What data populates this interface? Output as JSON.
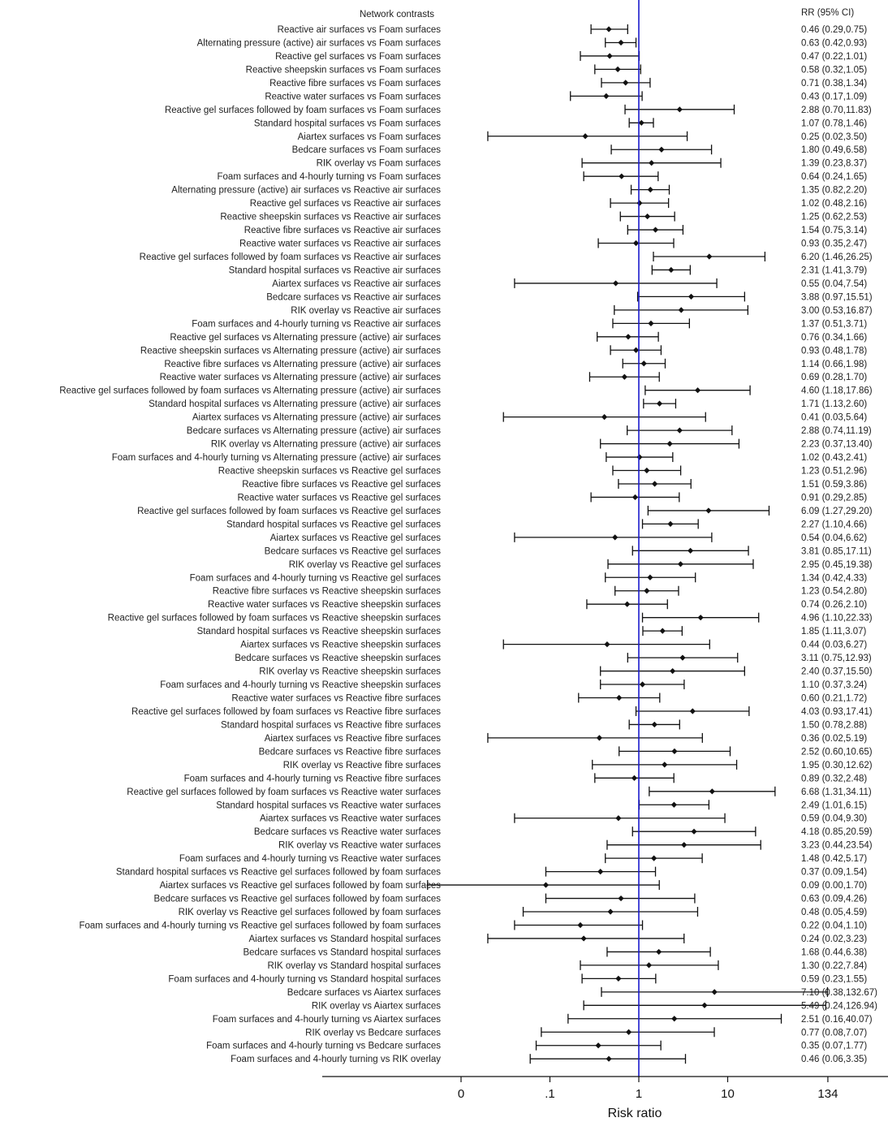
{
  "chart_data": {
    "type": "forest",
    "header_left": "Network contrasts",
    "header_right": "RR (95% CI)",
    "xlabel": "Risk ratio",
    "scale": "log",
    "reference_line": 1,
    "reference_color": "#1a1acc",
    "xticks": [
      {
        "label": "0",
        "value": 0.01
      },
      {
        "label": ".1",
        "value": 0.1
      },
      {
        "label": "1",
        "value": 1
      },
      {
        "label": "10",
        "value": 10
      },
      {
        "label": "134",
        "value": 134
      }
    ],
    "rows": [
      {
        "label": "Reactive air surfaces vs Foam surfaces",
        "rr": 0.46,
        "lo": 0.29,
        "hi": 0.75,
        "text": "0.46 (0.29,0.75)"
      },
      {
        "label": "Alternating pressure (active) air surfaces vs Foam surfaces",
        "rr": 0.63,
        "lo": 0.42,
        "hi": 0.93,
        "text": "0.63 (0.42,0.93)"
      },
      {
        "label": "Reactive gel surfaces vs Foam surfaces",
        "rr": 0.47,
        "lo": 0.22,
        "hi": 1.01,
        "text": "0.47 (0.22,1.01)"
      },
      {
        "label": "Reactive sheepskin surfaces vs Foam surfaces",
        "rr": 0.58,
        "lo": 0.32,
        "hi": 1.05,
        "text": "0.58 (0.32,1.05)"
      },
      {
        "label": "Reactive fibre surfaces vs Foam surfaces",
        "rr": 0.71,
        "lo": 0.38,
        "hi": 1.34,
        "text": "0.71 (0.38,1.34)"
      },
      {
        "label": "Reactive water surfaces vs Foam surfaces",
        "rr": 0.43,
        "lo": 0.17,
        "hi": 1.09,
        "text": "0.43 (0.17,1.09)"
      },
      {
        "label": "Reactive gel surfaces followed by foam surfaces vs Foam surfaces",
        "rr": 2.88,
        "lo": 0.7,
        "hi": 11.83,
        "text": "2.88 (0.70,11.83)"
      },
      {
        "label": "Standard hospital surfaces vs Foam surfaces",
        "rr": 1.07,
        "lo": 0.78,
        "hi": 1.46,
        "text": "1.07 (0.78,1.46)"
      },
      {
        "label": "Aiartex surfaces vs Foam surfaces",
        "rr": 0.25,
        "lo": 0.02,
        "hi": 3.5,
        "text": "0.25 (0.02,3.50)"
      },
      {
        "label": "Bedcare surfaces vs Foam surfaces",
        "rr": 1.8,
        "lo": 0.49,
        "hi": 6.58,
        "text": "1.80 (0.49,6.58)"
      },
      {
        "label": "RIK overlay vs Foam surfaces",
        "rr": 1.39,
        "lo": 0.23,
        "hi": 8.37,
        "text": "1.39 (0.23,8.37)"
      },
      {
        "label": "Foam surfaces and 4-hourly turning vs Foam surfaces",
        "rr": 0.64,
        "lo": 0.24,
        "hi": 1.65,
        "text": "0.64 (0.24,1.65)"
      },
      {
        "label": "Alternating pressure (active) air surfaces vs Reactive air surfaces",
        "rr": 1.35,
        "lo": 0.82,
        "hi": 2.2,
        "text": "1.35 (0.82,2.20)"
      },
      {
        "label": "Reactive gel surfaces vs Reactive air surfaces",
        "rr": 1.02,
        "lo": 0.48,
        "hi": 2.16,
        "text": "1.02 (0.48,2.16)"
      },
      {
        "label": "Reactive sheepskin surfaces vs Reactive air surfaces",
        "rr": 1.25,
        "lo": 0.62,
        "hi": 2.53,
        "text": "1.25 (0.62,2.53)"
      },
      {
        "label": "Reactive fibre surfaces vs Reactive air surfaces",
        "rr": 1.54,
        "lo": 0.75,
        "hi": 3.14,
        "text": "1.54 (0.75,3.14)"
      },
      {
        "label": "Reactive water surfaces vs Reactive air surfaces",
        "rr": 0.93,
        "lo": 0.35,
        "hi": 2.47,
        "text": "0.93 (0.35,2.47)"
      },
      {
        "label": "Reactive gel surfaces followed by foam surfaces vs Reactive air surfaces",
        "rr": 6.2,
        "lo": 1.46,
        "hi": 26.25,
        "text": "6.20 (1.46,26.25)"
      },
      {
        "label": "Standard hospital surfaces vs Reactive air surfaces",
        "rr": 2.31,
        "lo": 1.41,
        "hi": 3.79,
        "text": "2.31 (1.41,3.79)"
      },
      {
        "label": "Aiartex surfaces vs Reactive air surfaces",
        "rr": 0.55,
        "lo": 0.04,
        "hi": 7.54,
        "text": "0.55 (0.04,7.54)"
      },
      {
        "label": "Bedcare surfaces vs Reactive air surfaces",
        "rr": 3.88,
        "lo": 0.97,
        "hi": 15.51,
        "text": "3.88 (0.97,15.51)"
      },
      {
        "label": "RIK overlay vs Reactive air surfaces",
        "rr": 3.0,
        "lo": 0.53,
        "hi": 16.87,
        "text": "3.00 (0.53,16.87)"
      },
      {
        "label": "Foam surfaces and 4-hourly turning vs Reactive air surfaces",
        "rr": 1.37,
        "lo": 0.51,
        "hi": 3.71,
        "text": "1.37 (0.51,3.71)"
      },
      {
        "label": "Reactive gel surfaces vs Alternating pressure (active) air surfaces",
        "rr": 0.76,
        "lo": 0.34,
        "hi": 1.66,
        "text": "0.76 (0.34,1.66)"
      },
      {
        "label": "Reactive sheepskin surfaces vs Alternating pressure (active) air surfaces",
        "rr": 0.93,
        "lo": 0.48,
        "hi": 1.78,
        "text": "0.93 (0.48,1.78)"
      },
      {
        "label": "Reactive fibre surfaces vs Alternating pressure (active) air surfaces",
        "rr": 1.14,
        "lo": 0.66,
        "hi": 1.98,
        "text": "1.14 (0.66,1.98)"
      },
      {
        "label": "Reactive water surfaces vs Alternating pressure (active) air surfaces",
        "rr": 0.69,
        "lo": 0.28,
        "hi": 1.7,
        "text": "0.69 (0.28,1.70)"
      },
      {
        "label": "Reactive gel surfaces followed by foam surfaces vs Alternating pressure (active) air surfaces",
        "rr": 4.6,
        "lo": 1.18,
        "hi": 17.86,
        "text": "4.60 (1.18,17.86)"
      },
      {
        "label": "Standard hospital surfaces vs Alternating pressure (active) air surfaces",
        "rr": 1.71,
        "lo": 1.13,
        "hi": 2.6,
        "text": "1.71 (1.13,2.60)"
      },
      {
        "label": "Aiartex surfaces vs Alternating pressure (active) air surfaces",
        "rr": 0.41,
        "lo": 0.03,
        "hi": 5.64,
        "text": "0.41 (0.03,5.64)"
      },
      {
        "label": "Bedcare surfaces vs Alternating pressure (active) air surfaces",
        "rr": 2.88,
        "lo": 0.74,
        "hi": 11.19,
        "text": "2.88 (0.74,11.19)"
      },
      {
        "label": "RIK overlay vs Alternating pressure (active) air surfaces",
        "rr": 2.23,
        "lo": 0.37,
        "hi": 13.4,
        "text": "2.23 (0.37,13.40)"
      },
      {
        "label": "Foam surfaces and 4-hourly turning vs Alternating pressure (active) air surfaces",
        "rr": 1.02,
        "lo": 0.43,
        "hi": 2.41,
        "text": "1.02 (0.43,2.41)"
      },
      {
        "label": "Reactive sheepskin surfaces vs Reactive gel surfaces",
        "rr": 1.23,
        "lo": 0.51,
        "hi": 2.96,
        "text": "1.23 (0.51,2.96)"
      },
      {
        "label": "Reactive fibre surfaces vs Reactive gel surfaces",
        "rr": 1.51,
        "lo": 0.59,
        "hi": 3.86,
        "text": "1.51 (0.59,3.86)"
      },
      {
        "label": "Reactive water surfaces vs Reactive gel surfaces",
        "rr": 0.91,
        "lo": 0.29,
        "hi": 2.85,
        "text": "0.91 (0.29,2.85)"
      },
      {
        "label": "Reactive gel surfaces followed by foam surfaces vs Reactive gel surfaces",
        "rr": 6.09,
        "lo": 1.27,
        "hi": 29.2,
        "text": "6.09 (1.27,29.20)"
      },
      {
        "label": "Standard hospital surfaces vs Reactive gel surfaces",
        "rr": 2.27,
        "lo": 1.1,
        "hi": 4.66,
        "text": "2.27 (1.10,4.66)"
      },
      {
        "label": "Aiartex surfaces vs Reactive gel surfaces",
        "rr": 0.54,
        "lo": 0.04,
        "hi": 6.62,
        "text": "0.54 (0.04,6.62)"
      },
      {
        "label": "Bedcare surfaces vs Reactive gel surfaces",
        "rr": 3.81,
        "lo": 0.85,
        "hi": 17.11,
        "text": "3.81 (0.85,17.11)"
      },
      {
        "label": "RIK overlay vs Reactive gel surfaces",
        "rr": 2.95,
        "lo": 0.45,
        "hi": 19.38,
        "text": "2.95 (0.45,19.38)"
      },
      {
        "label": "Foam surfaces and 4-hourly turning vs Reactive gel surfaces",
        "rr": 1.34,
        "lo": 0.42,
        "hi": 4.33,
        "text": "1.34 (0.42,4.33)"
      },
      {
        "label": "Reactive fibre surfaces vs Reactive sheepskin surfaces",
        "rr": 1.23,
        "lo": 0.54,
        "hi": 2.8,
        "text": "1.23 (0.54,2.80)"
      },
      {
        "label": "Reactive water surfaces vs Reactive sheepskin surfaces",
        "rr": 0.74,
        "lo": 0.26,
        "hi": 2.1,
        "text": "0.74 (0.26,2.10)"
      },
      {
        "label": "Reactive gel surfaces followed by foam surfaces vs Reactive sheepskin surfaces",
        "rr": 4.96,
        "lo": 1.1,
        "hi": 22.33,
        "text": "4.96 (1.10,22.33)"
      },
      {
        "label": "Standard hospital surfaces vs Reactive sheepskin surfaces",
        "rr": 1.85,
        "lo": 1.11,
        "hi": 3.07,
        "text": "1.85 (1.11,3.07)"
      },
      {
        "label": "Aiartex surfaces vs Reactive sheepskin surfaces",
        "rr": 0.44,
        "lo": 0.03,
        "hi": 6.27,
        "text": "0.44 (0.03,6.27)"
      },
      {
        "label": "Bedcare surfaces vs Reactive sheepskin surfaces",
        "rr": 3.11,
        "lo": 0.75,
        "hi": 12.93,
        "text": "3.11 (0.75,12.93)"
      },
      {
        "label": "RIK overlay vs Reactive sheepskin surfaces",
        "rr": 2.4,
        "lo": 0.37,
        "hi": 15.5,
        "text": "2.40 (0.37,15.50)"
      },
      {
        "label": "Foam surfaces and 4-hourly turning vs Reactive sheepskin surfaces",
        "rr": 1.1,
        "lo": 0.37,
        "hi": 3.24,
        "text": "1.10 (0.37,3.24)"
      },
      {
        "label": "Reactive water surfaces vs Reactive fibre surfaces",
        "rr": 0.6,
        "lo": 0.21,
        "hi": 1.72,
        "text": "0.60 (0.21,1.72)"
      },
      {
        "label": "Reactive gel surfaces followed by foam surfaces vs Reactive fibre surfaces",
        "rr": 4.03,
        "lo": 0.93,
        "hi": 17.41,
        "text": "4.03 (0.93,17.41)"
      },
      {
        "label": "Standard hospital surfaces vs Reactive fibre surfaces",
        "rr": 1.5,
        "lo": 0.78,
        "hi": 2.88,
        "text": "1.50 (0.78,2.88)"
      },
      {
        "label": "Aiartex surfaces vs Reactive fibre surfaces",
        "rr": 0.36,
        "lo": 0.02,
        "hi": 5.19,
        "text": "0.36 (0.02,5.19)"
      },
      {
        "label": "Bedcare surfaces vs Reactive fibre surfaces",
        "rr": 2.52,
        "lo": 0.6,
        "hi": 10.65,
        "text": "2.52 (0.60,10.65)"
      },
      {
        "label": "RIK overlay vs Reactive fibre surfaces",
        "rr": 1.95,
        "lo": 0.3,
        "hi": 12.62,
        "text": "1.95 (0.30,12.62)"
      },
      {
        "label": "Foam surfaces and 4-hourly turning vs Reactive fibre surfaces",
        "rr": 0.89,
        "lo": 0.32,
        "hi": 2.48,
        "text": "0.89 (0.32,2.48)"
      },
      {
        "label": "Reactive gel surfaces followed by foam surfaces vs Reactive water surfaces",
        "rr": 6.68,
        "lo": 1.31,
        "hi": 34.11,
        "text": "6.68 (1.31,34.11)"
      },
      {
        "label": "Standard hospital surfaces vs Reactive water surfaces",
        "rr": 2.49,
        "lo": 1.01,
        "hi": 6.15,
        "text": "2.49 (1.01,6.15)"
      },
      {
        "label": "Aiartex surfaces vs Reactive water surfaces",
        "rr": 0.59,
        "lo": 0.04,
        "hi": 9.3,
        "text": "0.59 (0.04,9.30)"
      },
      {
        "label": "Bedcare surfaces vs Reactive water surfaces",
        "rr": 4.18,
        "lo": 0.85,
        "hi": 20.59,
        "text": "4.18 (0.85,20.59)"
      },
      {
        "label": "RIK overlay vs Reactive water surfaces",
        "rr": 3.23,
        "lo": 0.44,
        "hi": 23.54,
        "text": "3.23 (0.44,23.54)"
      },
      {
        "label": "Foam surfaces and 4-hourly turning vs Reactive water surfaces",
        "rr": 1.48,
        "lo": 0.42,
        "hi": 5.17,
        "text": "1.48 (0.42,5.17)"
      },
      {
        "label": "Standard hospital surfaces vs Reactive gel surfaces followed by foam surfaces",
        "rr": 0.37,
        "lo": 0.09,
        "hi": 1.54,
        "text": "0.37 (0.09,1.54)"
      },
      {
        "label": "Aiartex surfaces vs Reactive gel surfaces followed by foam surfaces",
        "rr": 0.09,
        "lo": 0.0,
        "hi": 1.7,
        "text": "0.09 (0.00,1.70)"
      },
      {
        "label": "Bedcare surfaces vs Reactive gel surfaces followed by foam surfaces",
        "rr": 0.63,
        "lo": 0.09,
        "hi": 4.26,
        "text": "0.63 (0.09,4.26)"
      },
      {
        "label": "RIK overlay vs Reactive gel surfaces followed by foam surfaces",
        "rr": 0.48,
        "lo": 0.05,
        "hi": 4.59,
        "text": "0.48 (0.05,4.59)"
      },
      {
        "label": "Foam surfaces and 4-hourly turning vs Reactive gel surfaces followed by foam surfaces",
        "rr": 0.22,
        "lo": 0.04,
        "hi": 1.1,
        "text": "0.22 (0.04,1.10)"
      },
      {
        "label": "Aiartex surfaces vs Standard hospital surfaces",
        "rr": 0.24,
        "lo": 0.02,
        "hi": 3.23,
        "text": "0.24 (0.02,3.23)"
      },
      {
        "label": "Bedcare surfaces vs Standard hospital surfaces",
        "rr": 1.68,
        "lo": 0.44,
        "hi": 6.38,
        "text": "1.68 (0.44,6.38)"
      },
      {
        "label": "RIK overlay vs Standard hospital surfaces",
        "rr": 1.3,
        "lo": 0.22,
        "hi": 7.84,
        "text": "1.30 (0.22,7.84)"
      },
      {
        "label": "Foam surfaces and 4-hourly turning vs Standard hospital surfaces",
        "rr": 0.59,
        "lo": 0.23,
        "hi": 1.55,
        "text": "0.59 (0.23,1.55)"
      },
      {
        "label": "Bedcare surfaces vs Aiartex surfaces",
        "rr": 7.1,
        "lo": 0.38,
        "hi": 132.67,
        "text": "7.10 (0.38,132.67)"
      },
      {
        "label": "RIK overlay vs Aiartex surfaces",
        "rr": 5.49,
        "lo": 0.24,
        "hi": 126.94,
        "text": "5.49 (0.24,126.94)"
      },
      {
        "label": "Foam surfaces and 4-hourly turning vs Aiartex surfaces",
        "rr": 2.51,
        "lo": 0.16,
        "hi": 40.07,
        "text": "2.51 (0.16,40.07)"
      },
      {
        "label": "RIK overlay vs Bedcare surfaces",
        "rr": 0.77,
        "lo": 0.08,
        "hi": 7.07,
        "text": "0.77 (0.08,7.07)"
      },
      {
        "label": "Foam surfaces and 4-hourly turning vs Bedcare surfaces",
        "rr": 0.35,
        "lo": 0.07,
        "hi": 1.77,
        "text": "0.35 (0.07,1.77)"
      },
      {
        "label": "Foam surfaces and 4-hourly turning vs RIK overlay",
        "rr": 0.46,
        "lo": 0.06,
        "hi": 3.35,
        "text": "0.46 (0.06,3.35)"
      }
    ]
  }
}
